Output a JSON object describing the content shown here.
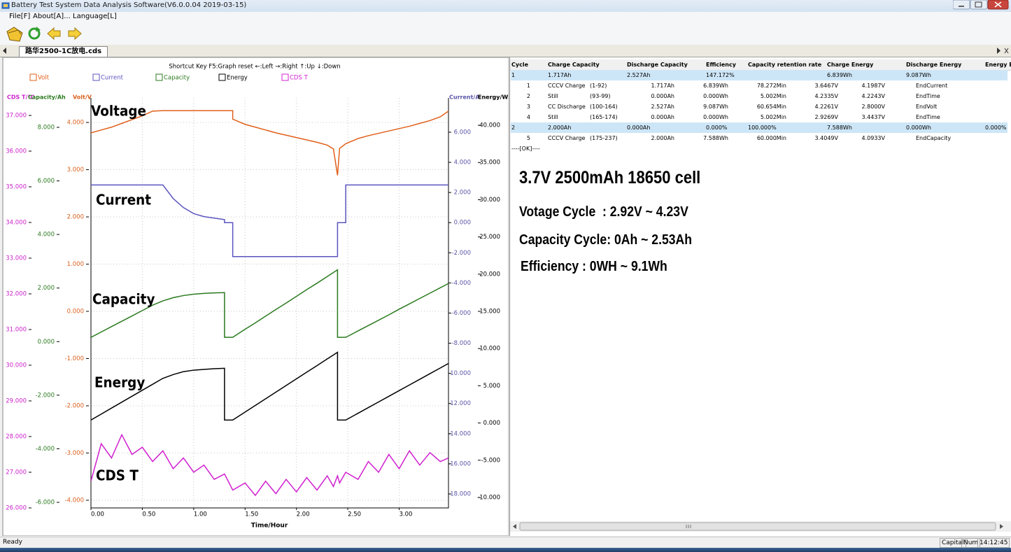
{
  "window": {
    "title": "Battery Test System Data Analysis Software(V6.0.0.04 2019-03-15)",
    "menu": [
      "File[F]",
      "About[A]...",
      "Language[L]"
    ],
    "tab": "路华2500-1C放电.cds"
  },
  "chart_data": {
    "type": "line",
    "subtitle": "Shortcut Key  F5:Graph reset  ←:Left  →:Right  ↑:Up  ↓:Down",
    "x_label": "Time/Hour",
    "annotations": [
      "Voltage",
      "Current",
      "Capacity",
      "Energy",
      "CDS T"
    ],
    "grid": true,
    "xlim": [
      0,
      3.48
    ],
    "xticks": [
      {
        "value": 0,
        "label": "0.00"
      },
      {
        "value": 0.5,
        "label": "0.50"
      },
      {
        "value": 1,
        "label": "1.00"
      },
      {
        "value": 1.5,
        "label": "1.50"
      },
      {
        "value": 2,
        "label": "2.00"
      },
      {
        "value": 2.5,
        "label": "2.50"
      },
      {
        "value": 3,
        "label": "3.00"
      }
    ],
    "axes": [
      {
        "label": "CDS T/℃",
        "color": "#cc22cc",
        "ylim": [
          26,
          37.49
        ],
        "yticks": [
          {
            "value": 26,
            "label": "26.000"
          },
          {
            "value": 27,
            "label": "27.000"
          },
          {
            "value": 28,
            "label": "28.000"
          },
          {
            "value": 29,
            "label": "29.000"
          },
          {
            "value": 30,
            "label": "30.000"
          },
          {
            "value": 31,
            "label": "31.000"
          },
          {
            "value": 32,
            "label": "32.000"
          },
          {
            "value": 33,
            "label": "33.000"
          },
          {
            "value": 34,
            "label": "34.000"
          },
          {
            "value": 35,
            "label": "35.000"
          },
          {
            "value": 36,
            "label": "36.000"
          },
          {
            "value": 37,
            "label": "37.000"
          }
        ]
      },
      {
        "label": "Capacity/Ah",
        "color": "#2a7a1e",
        "ylim": [
          -6.209,
          9.097
        ],
        "yticks": [
          {
            "value": -6,
            "label": "-6.000"
          },
          {
            "value": -4,
            "label": "-4.000"
          },
          {
            "value": -2,
            "label": "-2.000"
          },
          {
            "value": 0,
            "label": "0.000"
          },
          {
            "value": 2,
            "label": "2.000"
          },
          {
            "value": 4,
            "label": "4.000"
          },
          {
            "value": 6,
            "label": "6.000"
          },
          {
            "value": 8,
            "label": "8.000"
          }
        ]
      },
      {
        "label": "Volt/V",
        "color": "#d9601c",
        "ylim": [
          -4.163,
          4.519
        ],
        "grid": true,
        "yticks": [
          {
            "value": -4,
            "label": "-4.000"
          },
          {
            "value": -3,
            "label": "-3.000"
          },
          {
            "value": -2,
            "label": "-2.000"
          },
          {
            "value": -1,
            "label": "-1.000"
          },
          {
            "value": 0,
            "label": "0.000"
          },
          {
            "value": 1,
            "label": "1.000"
          },
          {
            "value": 2,
            "label": "2.000"
          },
          {
            "value": 3,
            "label": "3.000"
          },
          {
            "value": 4,
            "label": "4.000"
          }
        ]
      },
      {
        "label": "Current/A",
        "color": "#5a55a8",
        "ylim": [
          -18.93,
          8.274
        ],
        "yticks": [
          {
            "value": -18,
            "label": "-18.000"
          },
          {
            "value": -16,
            "label": "-16.000"
          },
          {
            "value": -14,
            "label": "-14.000"
          },
          {
            "value": -12,
            "label": "-12.000"
          },
          {
            "value": -10,
            "label": "-10.000"
          },
          {
            "value": -8,
            "label": "-8.000"
          },
          {
            "value": -6,
            "label": "-6.000"
          },
          {
            "value": -4,
            "label": "-4.000"
          },
          {
            "value": -2,
            "label": "-2.000"
          },
          {
            "value": 0,
            "label": "0.000"
          },
          {
            "value": 2,
            "label": "2.000"
          },
          {
            "value": 4,
            "label": "4.000"
          },
          {
            "value": 6,
            "label": "6.000"
          }
        ]
      },
      {
        "label": "Energy/Wh",
        "color": "#000000",
        "ylim": [
          -11.41,
          43.67
        ],
        "yticks": [
          {
            "value": -10,
            "label": "-10.000"
          },
          {
            "value": -5,
            "label": "-5.000"
          },
          {
            "value": 0,
            "label": "0.000"
          },
          {
            "value": 5,
            "label": "5.000"
          },
          {
            "value": 10,
            "label": "10.000"
          },
          {
            "value": 15,
            "label": "15.000"
          },
          {
            "value": 20,
            "label": "20.000"
          },
          {
            "value": 25,
            "label": "25.000"
          },
          {
            "value": 30,
            "label": "30.000"
          },
          {
            "value": 35,
            "label": "35.000"
          },
          {
            "value": 40,
            "label": "40.000"
          }
        ]
      }
    ],
    "x": [
      0,
      0.1,
      0.2,
      0.3,
      0.4,
      0.5,
      0.6,
      0.7,
      0.8,
      0.9,
      1.0,
      1.1,
      1.2,
      1.3,
      1.3,
      1.38,
      1.38,
      1.5,
      1.6,
      1.7,
      1.8,
      1.9,
      2.0,
      2.1,
      2.2,
      2.3,
      2.36,
      2.4,
      2.4,
      2.42,
      2.48,
      2.48,
      2.6,
      2.7,
      2.8,
      2.9,
      3.0,
      3.1,
      3.2,
      3.3,
      3.4,
      3.48
    ],
    "series": [
      {
        "name": "Volt",
        "color": "#e0601a",
        "axis": 2,
        "values": [
          3.78,
          3.84,
          3.9,
          3.98,
          4.06,
          4.14,
          4.24,
          4.25,
          4.25,
          4.25,
          4.25,
          4.25,
          4.25,
          4.25,
          4.25,
          4.25,
          4.07,
          3.96,
          3.9,
          3.84,
          3.78,
          3.73,
          3.68,
          3.63,
          3.58,
          3.52,
          3.44,
          2.88,
          2.88,
          3.45,
          3.55,
          3.55,
          3.66,
          3.72,
          3.77,
          3.82,
          3.87,
          3.92,
          3.98,
          4.04,
          4.12,
          4.24
        ]
      },
      {
        "name": "Current",
        "color": "#5a55c0",
        "axis": 3,
        "values": [
          2.5,
          2.5,
          2.5,
          2.5,
          2.5,
          2.5,
          2.5,
          2.5,
          1.6,
          1.0,
          0.6,
          0.4,
          0.3,
          0.2,
          0,
          0,
          -2.25,
          -2.25,
          -2.25,
          -2.25,
          -2.25,
          -2.25,
          -2.25,
          -2.25,
          -2.25,
          -2.25,
          -2.25,
          -2.25,
          0,
          0,
          0,
          2.5,
          2.5,
          2.5,
          2.5,
          2.5,
          2.5,
          2.5,
          2.5,
          2.5,
          2.5,
          2.5
        ]
      },
      {
        "name": "Capacity",
        "color": "#2a7a1e",
        "axis": 1,
        "values": [
          0.16,
          0.36,
          0.56,
          0.76,
          0.96,
          1.16,
          1.36,
          1.52,
          1.64,
          1.72,
          1.77,
          1.8,
          1.82,
          1.83,
          0.16,
          0.16,
          0.16,
          0.46,
          0.7,
          0.95,
          1.2,
          1.44,
          1.69,
          1.94,
          2.18,
          2.43,
          2.58,
          2.68,
          0.16,
          0.16,
          0.16,
          0.16,
          0.4,
          0.6,
          0.8,
          1.0,
          1.21,
          1.41,
          1.61,
          1.81,
          2.01,
          2.17
        ]
      },
      {
        "name": "Energy",
        "color": "#000000",
        "axis": 4,
        "values": [
          0.4,
          1.2,
          2.0,
          2.8,
          3.6,
          4.4,
          5.2,
          6.0,
          6.5,
          6.9,
          7.1,
          7.2,
          7.3,
          7.35,
          0.4,
          0.4,
          0.4,
          1.47,
          2.36,
          3.25,
          4.15,
          5.04,
          5.93,
          6.82,
          7.71,
          8.61,
          9.14,
          9.5,
          0.4,
          0.4,
          0.4,
          0.4,
          1.31,
          2.07,
          2.83,
          3.59,
          4.35,
          5.11,
          5.87,
          6.63,
          7.39,
          8.0
        ]
      },
      {
        "name": "CDS T",
        "color": "#d020d0",
        "axis": 0,
        "values": [
          26.75,
          27.8,
          27.4,
          28.05,
          27.5,
          27.7,
          27.3,
          27.6,
          27.1,
          27.4,
          27.0,
          27.2,
          26.8,
          26.95,
          26.95,
          26.5,
          26.5,
          26.7,
          26.35,
          26.75,
          26.4,
          26.8,
          26.45,
          26.85,
          26.5,
          26.9,
          26.6,
          26.9,
          26.9,
          26.7,
          27.0,
          27.0,
          26.8,
          27.3,
          27.0,
          27.5,
          27.1,
          27.6,
          27.2,
          27.55,
          27.3,
          27.4
        ]
      }
    ]
  },
  "table": {
    "headers": [
      "Cycle",
      "Charge Capacity",
      "Discharge Capacity",
      "Efficiency",
      "Capacity retention rate",
      "Charge Energy",
      "Discharge Energy",
      "Energy E"
    ],
    "rows": [
      {
        "kind": "cycle",
        "cells": {
          "cycle": "1",
          "charge_capacity": "1.717Ah",
          "discharge_capacity": "2.527Ah",
          "efficiency": "147.172%",
          "charge_energy": "6.839Wh",
          "discharge_energy": "9.087Wh"
        }
      },
      {
        "kind": "step",
        "cells": {
          "step": "1",
          "mode": "CCCV Charge",
          "range": "(1-92)",
          "capacity": "1.717Ah",
          "energy": "6.839Wh",
          "time": "78.272Min",
          "start_voltage": "3.6467V",
          "end_voltage": "4.1987V",
          "end_condition": "EndCurrent"
        }
      },
      {
        "kind": "step",
        "cells": {
          "step": "2",
          "mode": "Still",
          "range": "(93-99)",
          "capacity": "0.000Ah",
          "energy": "0.000Wh",
          "time": "5.002Min",
          "start_voltage": "4.2335V",
          "end_voltage": "4.2243V",
          "end_condition": "EndTime"
        }
      },
      {
        "kind": "step",
        "cells": {
          "step": "3",
          "mode": "CC Discharge",
          "range": "(100-164)",
          "capacity": "2.527Ah",
          "energy": "9.087Wh",
          "time": "60.654Min",
          "start_voltage": "4.2261V",
          "end_voltage": "2.8000V",
          "end_condition": "EndVolt"
        }
      },
      {
        "kind": "step",
        "cells": {
          "step": "4",
          "mode": "Still",
          "range": "(165-174)",
          "capacity": "0.000Ah",
          "energy": "0.000Wh",
          "time": "5.002Min",
          "start_voltage": "2.9269V",
          "end_voltage": "3.4437V",
          "end_condition": "EndTime"
        }
      },
      {
        "kind": "cycle",
        "cells": {
          "cycle": "2",
          "charge_capacity": "2.000Ah",
          "discharge_capacity": "0.000Ah",
          "efficiency": "0.000%",
          "retention_rate": "100.000%",
          "charge_energy": "7.588Wh",
          "discharge_energy": "0.000Wh",
          "energy_efficiency": "0.000%"
        }
      },
      {
        "kind": "step",
        "cells": {
          "step": "5",
          "mode": "CCCV Charge",
          "range": "(175-237)",
          "capacity": "2.000Ah",
          "energy": "7.588Wh",
          "time": "60.000Min",
          "start_voltage": "3.4049V",
          "end_voltage": "4.0933V",
          "end_condition": "EndCapacity"
        }
      }
    ],
    "footer": "----[OK]----"
  },
  "notes": [
    "3.7V 2500mAh 18650 cell",
    "Votage Cycle  : 2.92V ~ 4.23V",
    "Capacity Cycle: 0Ah ~ 2.53Ah",
    "Efficiency : 0WH ~ 9.1Wh"
  ],
  "status_bar": {
    "message": "Ready",
    "indicators": [
      "Capital",
      "Num",
      "14:12:45"
    ]
  }
}
